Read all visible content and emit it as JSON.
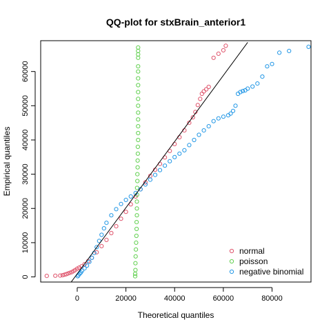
{
  "chart_data": {
    "type": "scatter",
    "title": "QQ-plot for stxBrain_anterior1",
    "xlabel": "Theoretical quantiles",
    "ylabel": "Empirical quantiles",
    "xlim": [
      -15000,
      96000
    ],
    "ylim": [
      -1500,
      69000
    ],
    "xticks": [
      0,
      20000,
      40000,
      60000,
      80000
    ],
    "yticks": [
      0,
      10000,
      20000,
      30000,
      40000,
      50000,
      60000
    ],
    "grid": false,
    "legend_position": "bottom-right",
    "marker": "open-circle",
    "reference_line": {
      "x": [
        -3000,
        70000
      ],
      "y": [
        -2000,
        68500
      ],
      "color": "#000000"
    },
    "series": [
      {
        "name": "normal",
        "color": "#DF536B",
        "points": [
          [
            -12500,
            300
          ],
          [
            -9000,
            350
          ],
          [
            -7000,
            400
          ],
          [
            -6000,
            500
          ],
          [
            -5200,
            650
          ],
          [
            -4500,
            800
          ],
          [
            -3800,
            1000
          ],
          [
            -3000,
            1200
          ],
          [
            -2200,
            1400
          ],
          [
            -1500,
            1700
          ],
          [
            -800,
            2000
          ],
          [
            0,
            2400
          ],
          [
            800,
            2700
          ],
          [
            1800,
            3100
          ],
          [
            3000,
            3700
          ],
          [
            4500,
            4600
          ],
          [
            6000,
            5600
          ],
          [
            8000,
            7200
          ],
          [
            10000,
            9000
          ],
          [
            12000,
            10800
          ],
          [
            14000,
            12800
          ],
          [
            16000,
            14800
          ],
          [
            18000,
            17000
          ],
          [
            20000,
            19000
          ],
          [
            22000,
            21200
          ],
          [
            24000,
            23500
          ],
          [
            26000,
            25600
          ],
          [
            28000,
            27600
          ],
          [
            30000,
            29500
          ],
          [
            32000,
            31300
          ],
          [
            34000,
            33000
          ],
          [
            36000,
            34900
          ],
          [
            38000,
            36800
          ],
          [
            40000,
            38800
          ],
          [
            42000,
            40800
          ],
          [
            44000,
            42800
          ],
          [
            46000,
            45000
          ],
          [
            47500,
            46600
          ],
          [
            48500,
            48200
          ],
          [
            49500,
            50200
          ],
          [
            50500,
            52000
          ],
          [
            51200,
            53500
          ],
          [
            52000,
            54200
          ],
          [
            53000,
            54800
          ],
          [
            54000,
            55500
          ],
          [
            56000,
            64000
          ],
          [
            58000,
            65200
          ],
          [
            60000,
            66200
          ],
          [
            61000,
            67500
          ]
        ]
      },
      {
        "name": "poisson",
        "color": "#61D04F",
        "points": [
          [
            23800,
            200
          ],
          [
            23800,
            900
          ],
          [
            23900,
            2000
          ],
          [
            23900,
            4000
          ],
          [
            24000,
            6000
          ],
          [
            24100,
            8000
          ],
          [
            24200,
            10000
          ],
          [
            24300,
            12000
          ],
          [
            24400,
            14000
          ],
          [
            24400,
            16000
          ],
          [
            24500,
            18000
          ],
          [
            24500,
            20000
          ],
          [
            24500,
            22000
          ],
          [
            24600,
            24000
          ],
          [
            24600,
            26000
          ],
          [
            24700,
            28000
          ],
          [
            24700,
            30000
          ],
          [
            24800,
            32000
          ],
          [
            24800,
            34000
          ],
          [
            24900,
            36000
          ],
          [
            24900,
            38000
          ],
          [
            25000,
            40000
          ],
          [
            25000,
            42000
          ],
          [
            25000,
            44000
          ],
          [
            25000,
            46000
          ],
          [
            25000,
            48000
          ],
          [
            25000,
            50000
          ],
          [
            25000,
            52000
          ],
          [
            25000,
            54000
          ],
          [
            25000,
            56000
          ],
          [
            25000,
            58000
          ],
          [
            25000,
            60000
          ],
          [
            25000,
            61500
          ],
          [
            25000,
            64000
          ],
          [
            25000,
            65000
          ],
          [
            25000,
            66000
          ],
          [
            25000,
            67000
          ]
        ]
      },
      {
        "name": "negative binomial",
        "color": "#2297E6",
        "points": [
          [
            200,
            200
          ],
          [
            500,
            500
          ],
          [
            1000,
            900
          ],
          [
            1500,
            1300
          ],
          [
            2000,
            1800
          ],
          [
            3000,
            2500
          ],
          [
            4000,
            3300
          ],
          [
            5000,
            4400
          ],
          [
            6000,
            5600
          ],
          [
            7000,
            7000
          ],
          [
            8000,
            8700
          ],
          [
            9000,
            10500
          ],
          [
            10000,
            12300
          ],
          [
            11000,
            14200
          ],
          [
            12000,
            15800
          ],
          [
            14000,
            18000
          ],
          [
            16000,
            19800
          ],
          [
            18000,
            21300
          ],
          [
            20000,
            22500
          ],
          [
            22000,
            23500
          ],
          [
            24000,
            24500
          ],
          [
            26000,
            25600
          ],
          [
            28000,
            27000
          ],
          [
            30000,
            28400
          ],
          [
            32000,
            29800
          ],
          [
            34000,
            31200
          ],
          [
            36000,
            32500
          ],
          [
            38000,
            33800
          ],
          [
            40000,
            35000
          ],
          [
            42000,
            36000
          ],
          [
            44000,
            37000
          ],
          [
            46000,
            38500
          ],
          [
            48000,
            40000
          ],
          [
            50000,
            41500
          ],
          [
            52000,
            42800
          ],
          [
            54000,
            44000
          ],
          [
            56000,
            45500
          ],
          [
            58000,
            46300
          ],
          [
            60000,
            46800
          ],
          [
            62000,
            47200
          ],
          [
            63000,
            47700
          ],
          [
            64000,
            48500
          ],
          [
            65000,
            50000
          ],
          [
            66000,
            53500
          ],
          [
            67000,
            54000
          ],
          [
            68000,
            54300
          ],
          [
            69000,
            54500
          ],
          [
            70000,
            55000
          ],
          [
            72000,
            55600
          ],
          [
            74000,
            56500
          ],
          [
            76000,
            58500
          ],
          [
            78000,
            61500
          ],
          [
            80000,
            62200
          ],
          [
            83000,
            65500
          ],
          [
            87000,
            66000
          ],
          [
            95000,
            67200
          ]
        ]
      }
    ]
  }
}
